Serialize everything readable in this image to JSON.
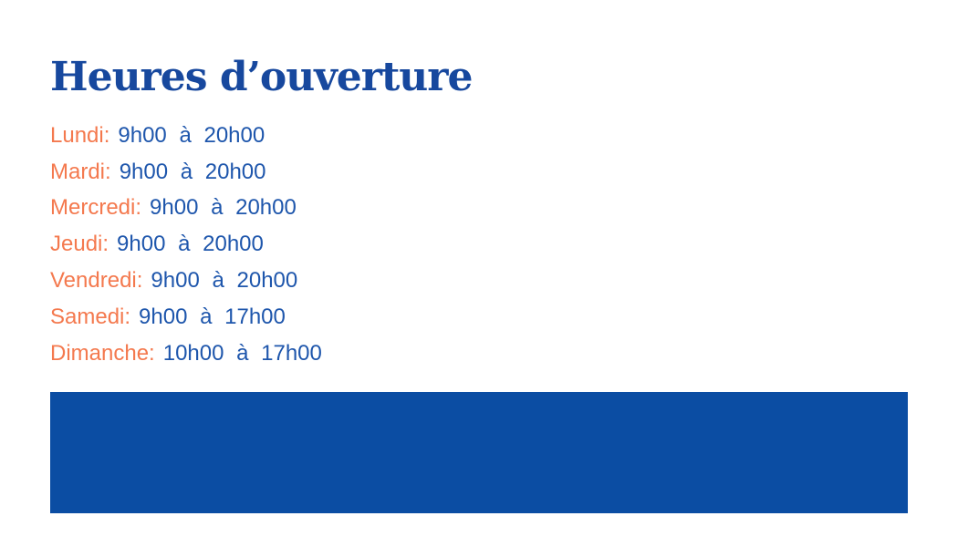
{
  "title": "Heures d’ouverture",
  "hours": {
    "items": [
      {
        "day": "Lundi:",
        "time": "9h00 à 20h00"
      },
      {
        "day": "Mardi:",
        "time": "9h00 à 20h00"
      },
      {
        "day": "Mercredi:",
        "time": "9h00 à 20h00"
      },
      {
        "day": "Jeudi:",
        "time": "9h00 à 20h00"
      },
      {
        "day": "Vendredi:",
        "time": "9h00 à 20h00"
      },
      {
        "day": "Samedi:",
        "time": "9h00 à 17h00"
      },
      {
        "day": "Dimanche:",
        "time": "10h00 à 17h00"
      }
    ]
  },
  "colors": {
    "title_blue": "#17489E",
    "day_orange": "#F4794E",
    "time_blue": "#1E56AC",
    "banner_blue": "#0B4DA3",
    "background": "#FFFFFF"
  }
}
